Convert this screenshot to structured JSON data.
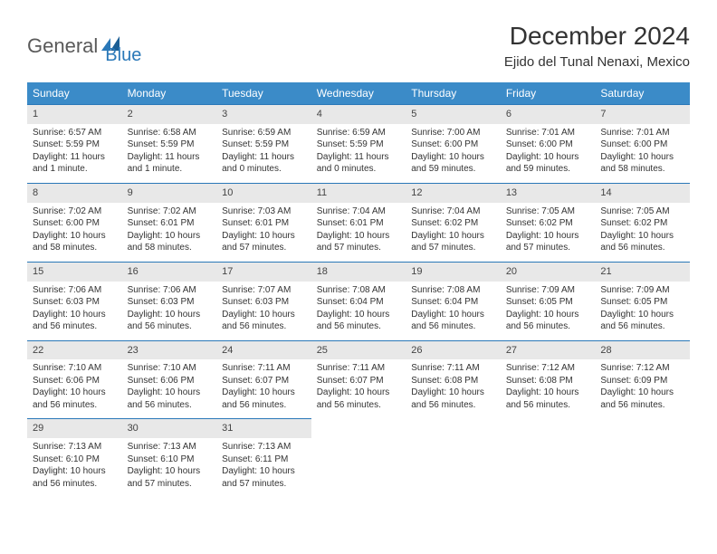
{
  "logo": {
    "part1": "General",
    "part2": "Blue"
  },
  "title": "December 2024",
  "location": "Ejido del Tunal Nenaxi, Mexico",
  "colors": {
    "header_bg": "#3b8bc8",
    "header_text": "#ffffff",
    "daynum_bg": "#e8e8e8",
    "rule": "#2a78b8",
    "text": "#333333",
    "logo_gray": "#5a5a5a",
    "logo_blue": "#2a78b8"
  },
  "fonts": {
    "title_size_pt": 21,
    "location_size_pt": 11,
    "dayhead_size_pt": 9,
    "body_size_pt": 7.5
  },
  "weekdays": [
    "Sunday",
    "Monday",
    "Tuesday",
    "Wednesday",
    "Thursday",
    "Friday",
    "Saturday"
  ],
  "weeks": [
    [
      {
        "n": "1",
        "sr": "Sunrise: 6:57 AM",
        "ss": "Sunset: 5:59 PM",
        "d1": "Daylight: 11 hours",
        "d2": "and 1 minute."
      },
      {
        "n": "2",
        "sr": "Sunrise: 6:58 AM",
        "ss": "Sunset: 5:59 PM",
        "d1": "Daylight: 11 hours",
        "d2": "and 1 minute."
      },
      {
        "n": "3",
        "sr": "Sunrise: 6:59 AM",
        "ss": "Sunset: 5:59 PM",
        "d1": "Daylight: 11 hours",
        "d2": "and 0 minutes."
      },
      {
        "n": "4",
        "sr": "Sunrise: 6:59 AM",
        "ss": "Sunset: 5:59 PM",
        "d1": "Daylight: 11 hours",
        "d2": "and 0 minutes."
      },
      {
        "n": "5",
        "sr": "Sunrise: 7:00 AM",
        "ss": "Sunset: 6:00 PM",
        "d1": "Daylight: 10 hours",
        "d2": "and 59 minutes."
      },
      {
        "n": "6",
        "sr": "Sunrise: 7:01 AM",
        "ss": "Sunset: 6:00 PM",
        "d1": "Daylight: 10 hours",
        "d2": "and 59 minutes."
      },
      {
        "n": "7",
        "sr": "Sunrise: 7:01 AM",
        "ss": "Sunset: 6:00 PM",
        "d1": "Daylight: 10 hours",
        "d2": "and 58 minutes."
      }
    ],
    [
      {
        "n": "8",
        "sr": "Sunrise: 7:02 AM",
        "ss": "Sunset: 6:00 PM",
        "d1": "Daylight: 10 hours",
        "d2": "and 58 minutes."
      },
      {
        "n": "9",
        "sr": "Sunrise: 7:02 AM",
        "ss": "Sunset: 6:01 PM",
        "d1": "Daylight: 10 hours",
        "d2": "and 58 minutes."
      },
      {
        "n": "10",
        "sr": "Sunrise: 7:03 AM",
        "ss": "Sunset: 6:01 PM",
        "d1": "Daylight: 10 hours",
        "d2": "and 57 minutes."
      },
      {
        "n": "11",
        "sr": "Sunrise: 7:04 AM",
        "ss": "Sunset: 6:01 PM",
        "d1": "Daylight: 10 hours",
        "d2": "and 57 minutes."
      },
      {
        "n": "12",
        "sr": "Sunrise: 7:04 AM",
        "ss": "Sunset: 6:02 PM",
        "d1": "Daylight: 10 hours",
        "d2": "and 57 minutes."
      },
      {
        "n": "13",
        "sr": "Sunrise: 7:05 AM",
        "ss": "Sunset: 6:02 PM",
        "d1": "Daylight: 10 hours",
        "d2": "and 57 minutes."
      },
      {
        "n": "14",
        "sr": "Sunrise: 7:05 AM",
        "ss": "Sunset: 6:02 PM",
        "d1": "Daylight: 10 hours",
        "d2": "and 56 minutes."
      }
    ],
    [
      {
        "n": "15",
        "sr": "Sunrise: 7:06 AM",
        "ss": "Sunset: 6:03 PM",
        "d1": "Daylight: 10 hours",
        "d2": "and 56 minutes."
      },
      {
        "n": "16",
        "sr": "Sunrise: 7:06 AM",
        "ss": "Sunset: 6:03 PM",
        "d1": "Daylight: 10 hours",
        "d2": "and 56 minutes."
      },
      {
        "n": "17",
        "sr": "Sunrise: 7:07 AM",
        "ss": "Sunset: 6:03 PM",
        "d1": "Daylight: 10 hours",
        "d2": "and 56 minutes."
      },
      {
        "n": "18",
        "sr": "Sunrise: 7:08 AM",
        "ss": "Sunset: 6:04 PM",
        "d1": "Daylight: 10 hours",
        "d2": "and 56 minutes."
      },
      {
        "n": "19",
        "sr": "Sunrise: 7:08 AM",
        "ss": "Sunset: 6:04 PM",
        "d1": "Daylight: 10 hours",
        "d2": "and 56 minutes."
      },
      {
        "n": "20",
        "sr": "Sunrise: 7:09 AM",
        "ss": "Sunset: 6:05 PM",
        "d1": "Daylight: 10 hours",
        "d2": "and 56 minutes."
      },
      {
        "n": "21",
        "sr": "Sunrise: 7:09 AM",
        "ss": "Sunset: 6:05 PM",
        "d1": "Daylight: 10 hours",
        "d2": "and 56 minutes."
      }
    ],
    [
      {
        "n": "22",
        "sr": "Sunrise: 7:10 AM",
        "ss": "Sunset: 6:06 PM",
        "d1": "Daylight: 10 hours",
        "d2": "and 56 minutes."
      },
      {
        "n": "23",
        "sr": "Sunrise: 7:10 AM",
        "ss": "Sunset: 6:06 PM",
        "d1": "Daylight: 10 hours",
        "d2": "and 56 minutes."
      },
      {
        "n": "24",
        "sr": "Sunrise: 7:11 AM",
        "ss": "Sunset: 6:07 PM",
        "d1": "Daylight: 10 hours",
        "d2": "and 56 minutes."
      },
      {
        "n": "25",
        "sr": "Sunrise: 7:11 AM",
        "ss": "Sunset: 6:07 PM",
        "d1": "Daylight: 10 hours",
        "d2": "and 56 minutes."
      },
      {
        "n": "26",
        "sr": "Sunrise: 7:11 AM",
        "ss": "Sunset: 6:08 PM",
        "d1": "Daylight: 10 hours",
        "d2": "and 56 minutes."
      },
      {
        "n": "27",
        "sr": "Sunrise: 7:12 AM",
        "ss": "Sunset: 6:08 PM",
        "d1": "Daylight: 10 hours",
        "d2": "and 56 minutes."
      },
      {
        "n": "28",
        "sr": "Sunrise: 7:12 AM",
        "ss": "Sunset: 6:09 PM",
        "d1": "Daylight: 10 hours",
        "d2": "and 56 minutes."
      }
    ],
    [
      {
        "n": "29",
        "sr": "Sunrise: 7:13 AM",
        "ss": "Sunset: 6:10 PM",
        "d1": "Daylight: 10 hours",
        "d2": "and 56 minutes."
      },
      {
        "n": "30",
        "sr": "Sunrise: 7:13 AM",
        "ss": "Sunset: 6:10 PM",
        "d1": "Daylight: 10 hours",
        "d2": "and 57 minutes."
      },
      {
        "n": "31",
        "sr": "Sunrise: 7:13 AM",
        "ss": "Sunset: 6:11 PM",
        "d1": "Daylight: 10 hours",
        "d2": "and 57 minutes."
      },
      null,
      null,
      null,
      null
    ]
  ]
}
